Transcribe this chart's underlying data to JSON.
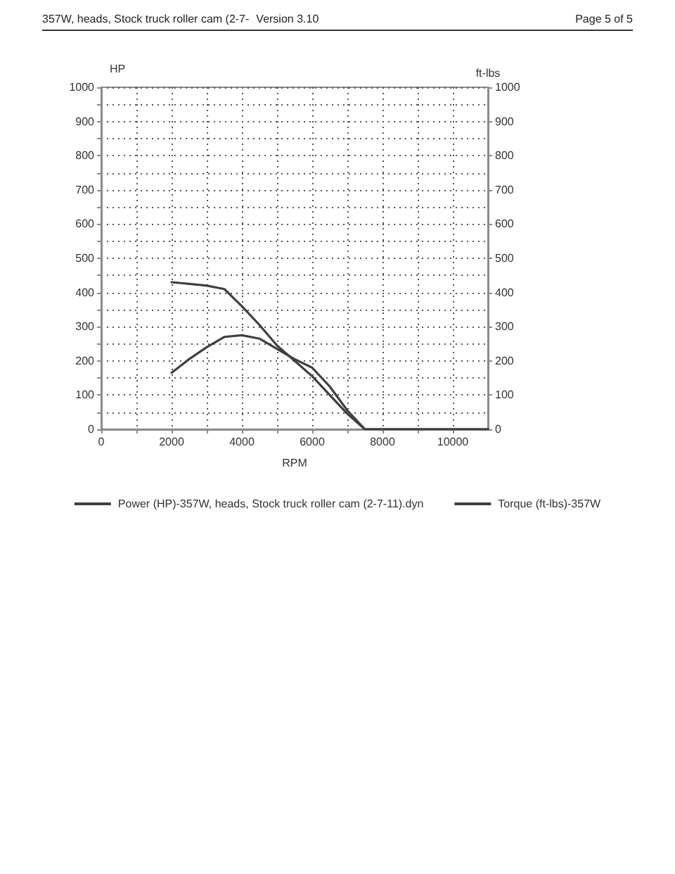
{
  "chart_data": {
    "type": "line",
    "title": "357W, heads, Stock truck roller cam (2-7-",
    "annotations": [
      "Version 3.10",
      "Page 5 of 5"
    ],
    "xlabel": "RPM",
    "ylabel": "HP",
    "y2label": "ft-lbs",
    "x": [
      2000,
      2500,
      3000,
      3500,
      4000,
      4500,
      5000,
      5500,
      6000,
      6500,
      7000,
      7500,
      11000
    ],
    "series": [
      {
        "name": "Power (HP)-357W, heads, Stock truck roller cam (2-7-11).dyn",
        "color": "#404040",
        "values": [
          165,
          205,
          240,
          270,
          275,
          265,
          235,
          205,
          180,
          125,
          55,
          0,
          0
        ]
      },
      {
        "name": "Torque (ft-lbs)-357W",
        "color": "#404040",
        "axis": "y2",
        "values": [
          430,
          425,
          420,
          410,
          360,
          305,
          245,
          200,
          155,
          100,
          45,
          0,
          0
        ]
      }
    ],
    "xlim": [
      0,
      11000
    ],
    "xticks": [
      0,
      {
        "value": 1000,
        "label": null
      },
      2000,
      {
        "value": 3000,
        "label": null
      },
      4000,
      {
        "value": 5000,
        "label": null
      },
      6000,
      {
        "value": 7000,
        "label": null
      },
      8000,
      {
        "value": 9000,
        "label": null
      },
      10000
    ],
    "ylim": [
      0,
      1000
    ],
    "yticks": [
      0,
      {
        "value": 50,
        "label": null
      },
      100,
      {
        "value": 150,
        "label": null
      },
      200,
      {
        "value": 250,
        "label": null
      },
      300,
      {
        "value": 350,
        "label": null
      },
      400,
      {
        "value": 450,
        "label": null
      },
      500,
      {
        "value": 550,
        "label": null
      },
      600,
      {
        "value": 650,
        "label": null
      },
      700,
      {
        "value": 750,
        "label": null
      },
      800,
      {
        "value": 850,
        "label": null
      },
      900,
      {
        "value": 950,
        "label": null
      },
      1000
    ],
    "y2lim": [
      0,
      1000
    ],
    "y2ticks": [
      0,
      100,
      200,
      300,
      400,
      500,
      600,
      700,
      800,
      900,
      1000
    ],
    "grid": true,
    "legend": "bottom"
  }
}
